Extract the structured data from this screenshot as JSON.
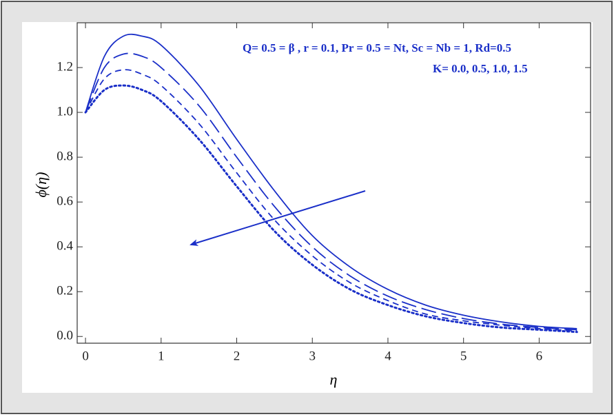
{
  "chart_data": {
    "type": "line",
    "annotations": [
      "Q= 0.5 = β , r = 0.1, Pr = 0.5 = Nt, Sc = Nb = 1, Rd=0.5",
      "K= 0.0, 0.5, 1.0, 1.5"
    ],
    "xlabel": "η",
    "ylabel": "ϕ(η)",
    "x": [
      0,
      0.25,
      0.5,
      0.75,
      1,
      1.5,
      2,
      2.5,
      3,
      3.5,
      4,
      4.5,
      5,
      5.5,
      6,
      6.5
    ],
    "series": [
      {
        "color": "#1a2fc8",
        "dash": "solid",
        "values": [
          1.0,
          1.25,
          1.34,
          1.34,
          1.3,
          1.12,
          0.88,
          0.65,
          0.45,
          0.31,
          0.21,
          0.14,
          0.095,
          0.065,
          0.045,
          0.035
        ]
      },
      {
        "color": "#1a2fc8",
        "dash": "long",
        "values": [
          1.0,
          1.2,
          1.26,
          1.25,
          1.2,
          1.03,
          0.8,
          0.58,
          0.4,
          0.27,
          0.18,
          0.12,
          0.08,
          0.055,
          0.04,
          0.03
        ]
      },
      {
        "color": "#1a2fc8",
        "dash": "short",
        "values": [
          1.0,
          1.15,
          1.19,
          1.17,
          1.12,
          0.95,
          0.73,
          0.52,
          0.36,
          0.24,
          0.16,
          0.1,
          0.07,
          0.05,
          0.035,
          0.025
        ]
      },
      {
        "color": "#1a2fc8",
        "dash": "dotted",
        "values": [
          1.0,
          1.1,
          1.12,
          1.1,
          1.05,
          0.88,
          0.67,
          0.47,
          0.32,
          0.21,
          0.14,
          0.09,
          0.06,
          0.04,
          0.03,
          0.02
        ]
      }
    ],
    "xlim": [
      -0.11,
      6.68
    ],
    "ylim": [
      -0.03,
      1.4
    ],
    "xticks": [
      0,
      1,
      2,
      3,
      4,
      5,
      6
    ],
    "yticks": [
      {
        "value": 0,
        "label": "0.0"
      },
      {
        "value": 0.2,
        "label": "0.2"
      },
      {
        "value": 0.4,
        "label": "0.4"
      },
      {
        "value": 0.6,
        "label": "0.6"
      },
      {
        "value": 0.8,
        "label": "0.8"
      },
      {
        "value": 1.0,
        "label": "1.0"
      },
      {
        "value": 1.2,
        "label": "1.2"
      }
    ]
  }
}
